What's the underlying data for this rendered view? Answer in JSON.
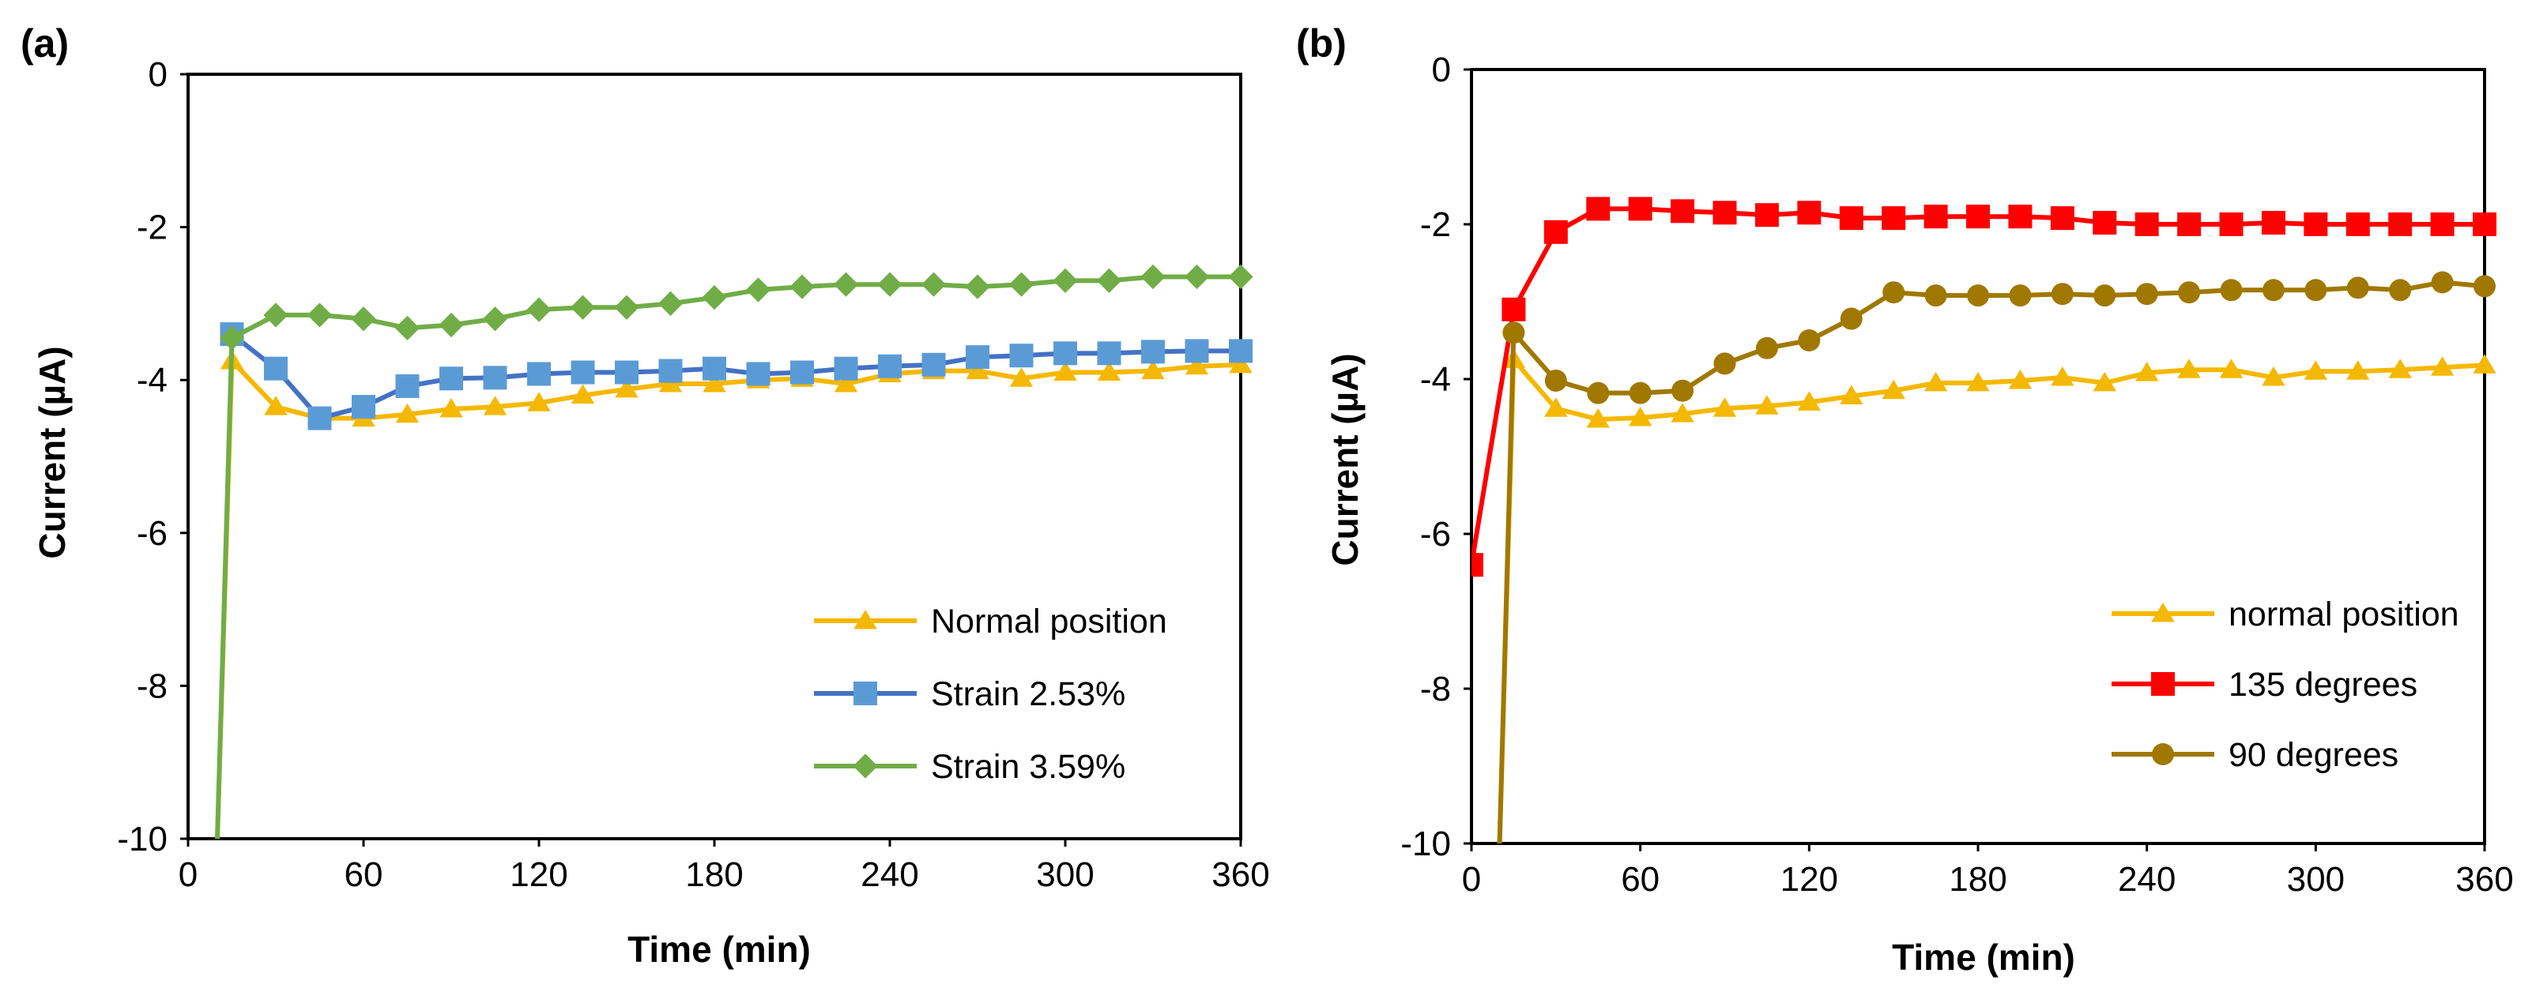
{
  "chart_data": [
    {
      "panel_label": "(a)",
      "type": "line",
      "xlabel": "Time (min)",
      "ylabel": "Current (µA)",
      "xlim": [
        0,
        360
      ],
      "ylim": [
        -10,
        0
      ],
      "xticks": [
        "0",
        "60",
        "120",
        "180",
        "240",
        "300",
        "360"
      ],
      "yticks": [
        "0",
        "-2",
        "-4",
        "-6",
        "-8",
        "-10"
      ],
      "legend_position": "bottom-right",
      "series": [
        {
          "name": "Normal position",
          "color": "#f5b800",
          "marker": "triangle",
          "x": [
            10,
            15,
            30,
            45,
            60,
            75,
            90,
            105,
            120,
            135,
            150,
            165,
            180,
            195,
            210,
            225,
            240,
            255,
            270,
            285,
            300,
            315,
            330,
            345,
            360
          ],
          "y": [
            -10,
            -3.75,
            -4.35,
            -4.5,
            -4.5,
            -4.45,
            -4.38,
            -4.35,
            -4.3,
            -4.2,
            -4.12,
            -4.05,
            -4.05,
            -4.0,
            -3.98,
            -4.05,
            -3.92,
            -3.88,
            -3.88,
            -3.98,
            -3.9,
            -3.9,
            -3.88,
            -3.82,
            -3.8
          ]
        },
        {
          "name": "Strain 2.53%",
          "color": "#4472c4",
          "marker_color": "#5b9bd5",
          "marker": "square",
          "x": [
            15,
            30,
            45,
            60,
            75,
            90,
            105,
            120,
            135,
            150,
            165,
            180,
            195,
            210,
            225,
            240,
            255,
            270,
            285,
            300,
            315,
            330,
            345,
            360
          ],
          "y": [
            -3.4,
            -3.85,
            -4.5,
            -4.35,
            -4.08,
            -3.98,
            -3.97,
            -3.92,
            -3.9,
            -3.9,
            -3.88,
            -3.85,
            -3.92,
            -3.9,
            -3.85,
            -3.82,
            -3.8,
            -3.7,
            -3.68,
            -3.65,
            -3.65,
            -3.63,
            -3.62,
            -3.62
          ]
        },
        {
          "name": "Strain 3.59%",
          "color": "#70ad47",
          "marker": "diamond",
          "x": [
            10,
            15,
            30,
            45,
            60,
            75,
            90,
            105,
            120,
            135,
            150,
            165,
            180,
            195,
            210,
            225,
            240,
            255,
            270,
            285,
            300,
            315,
            330,
            345,
            360
          ],
          "y": [
            -10,
            -3.45,
            -3.15,
            -3.15,
            -3.2,
            -3.32,
            -3.28,
            -3.2,
            -3.08,
            -3.05,
            -3.05,
            -3.0,
            -2.92,
            -2.82,
            -2.78,
            -2.75,
            -2.75,
            -2.75,
            -2.78,
            -2.75,
            -2.7,
            -2.7,
            -2.65,
            -2.65,
            -2.65
          ]
        }
      ]
    },
    {
      "panel_label": "(b)",
      "type": "line",
      "xlabel": "Time (min)",
      "ylabel": "Current (µA)",
      "xlim": [
        0,
        360
      ],
      "ylim": [
        -10,
        0
      ],
      "xticks": [
        "0",
        "60",
        "120",
        "180",
        "240",
        "300",
        "360"
      ],
      "yticks": [
        "0",
        "-2",
        "-4",
        "-6",
        "-8",
        "-10"
      ],
      "legend_position": "bottom-right",
      "series": [
        {
          "name": "normal position",
          "color": "#f5b800",
          "marker": "triangle",
          "x": [
            10,
            15,
            30,
            45,
            60,
            75,
            90,
            105,
            120,
            135,
            150,
            165,
            180,
            195,
            210,
            225,
            240,
            255,
            270,
            285,
            300,
            315,
            330,
            345,
            360
          ],
          "y": [
            -10,
            -3.75,
            -4.38,
            -4.52,
            -4.5,
            -4.45,
            -4.38,
            -4.35,
            -4.3,
            -4.22,
            -4.15,
            -4.05,
            -4.05,
            -4.02,
            -3.98,
            -4.05,
            -3.92,
            -3.88,
            -3.88,
            -3.98,
            -3.9,
            -3.9,
            -3.88,
            -3.85,
            -3.82
          ]
        },
        {
          "name": "135 degrees",
          "color": "#ff0000",
          "marker": "square",
          "x": [
            0,
            15,
            30,
            45,
            60,
            75,
            90,
            105,
            120,
            135,
            150,
            165,
            180,
            195,
            210,
            225,
            240,
            255,
            270,
            285,
            300,
            315,
            330,
            345,
            360
          ],
          "y": [
            -6.4,
            -3.1,
            -2.1,
            -1.8,
            -1.8,
            -1.83,
            -1.85,
            -1.88,
            -1.85,
            -1.92,
            -1.92,
            -1.9,
            -1.9,
            -1.9,
            -1.92,
            -1.98,
            -2.0,
            -2.0,
            -2.0,
            -1.98,
            -2.0,
            -2.0,
            -2.0,
            -2.0,
            -2.0
          ]
        },
        {
          "name": "90 degrees",
          "color": "#a07800",
          "marker_color": "#a07800",
          "marker": "circle",
          "x": [
            10,
            15,
            30,
            45,
            60,
            75,
            90,
            105,
            120,
            135,
            150,
            165,
            180,
            195,
            210,
            225,
            240,
            255,
            270,
            285,
            300,
            315,
            330,
            345,
            360
          ],
          "y": [
            -10,
            -3.4,
            -4.02,
            -4.18,
            -4.18,
            -4.15,
            -3.8,
            -3.6,
            -3.5,
            -3.22,
            -2.88,
            -2.92,
            -2.92,
            -2.92,
            -2.9,
            -2.92,
            -2.9,
            -2.88,
            -2.85,
            -2.85,
            -2.85,
            -2.82,
            -2.85,
            -2.75,
            -2.8
          ]
        }
      ]
    }
  ]
}
